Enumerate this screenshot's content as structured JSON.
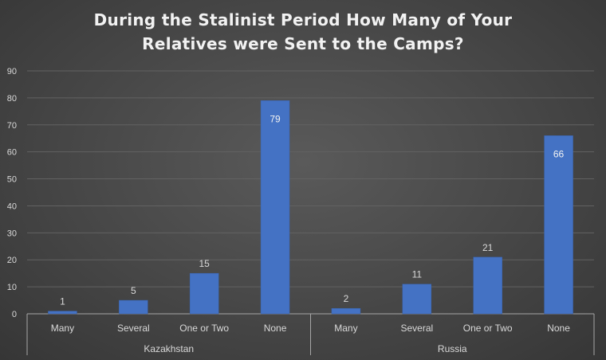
{
  "title_lines": [
    "During the Stalinist Period How Many of Your",
    "Relatives were Sent to the Camps?"
  ],
  "colors": {
    "bar": "#4472c4",
    "text": "#d9d9d9",
    "grid": "#626262",
    "axis": "#a6a6a6"
  },
  "chart_data": {
    "type": "bar",
    "title": "During the Stalinist Period How Many of Your Relatives were Sent to the Camps?",
    "groups": [
      {
        "name": "Kazakhstan",
        "categories": [
          "Many",
          "Several",
          "One or Two",
          "None"
        ],
        "values": [
          1,
          5,
          15,
          79
        ]
      },
      {
        "name": "Russia",
        "categories": [
          "Many",
          "Several",
          "One or Two",
          "None"
        ],
        "values": [
          2,
          11,
          21,
          66
        ]
      }
    ],
    "ylim": [
      0,
      90
    ],
    "yticks": [
      0,
      10,
      20,
      30,
      40,
      50,
      60,
      70,
      80,
      90
    ],
    "grid": true,
    "legend": "none",
    "data_labels": true
  }
}
